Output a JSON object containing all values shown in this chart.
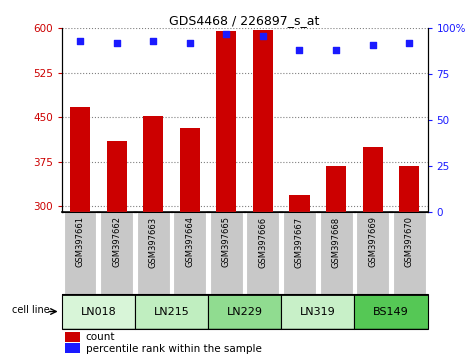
{
  "title": "GDS4468 / 226897_s_at",
  "samples": [
    "GSM397661",
    "GSM397662",
    "GSM397663",
    "GSM397664",
    "GSM397665",
    "GSM397666",
    "GSM397667",
    "GSM397668",
    "GSM397669",
    "GSM397670"
  ],
  "counts": [
    468,
    410,
    452,
    432,
    595,
    598,
    320,
    368,
    400,
    368
  ],
  "percentile_ranks": [
    93,
    92,
    93,
    92,
    97,
    96,
    88,
    88,
    91,
    92
  ],
  "cell_lines": [
    {
      "name": "LN018",
      "start": 0,
      "end": 2,
      "color": "#d8f5d8"
    },
    {
      "name": "LN215",
      "start": 2,
      "end": 4,
      "color": "#c0eec0"
    },
    {
      "name": "LN229",
      "start": 4,
      "end": 6,
      "color": "#90dc90"
    },
    {
      "name": "LN319",
      "start": 6,
      "end": 8,
      "color": "#c8f0c8"
    },
    {
      "name": "BS149",
      "start": 8,
      "end": 10,
      "color": "#55c855"
    }
  ],
  "ylim_left": [
    290,
    600
  ],
  "ylim_right": [
    0,
    100
  ],
  "yticks_left": [
    300,
    375,
    450,
    525,
    600
  ],
  "yticks_right": [
    0,
    25,
    50,
    75,
    100
  ],
  "ytick_right_labels": [
    "0",
    "25",
    "50",
    "75",
    "100%"
  ],
  "bar_color": "#cc0000",
  "dot_color": "#1a1aff",
  "bar_width": 0.55,
  "left_tick_color": "#cc0000",
  "right_tick_color": "#1a1aff",
  "tick_label_bg": "#c8c8c8",
  "legend_count_color": "#cc0000",
  "legend_pct_color": "#1a1aff",
  "legend_count_label": "count",
  "legend_pct_label": "percentile rank within the sample",
  "cell_line_label": "cell line"
}
